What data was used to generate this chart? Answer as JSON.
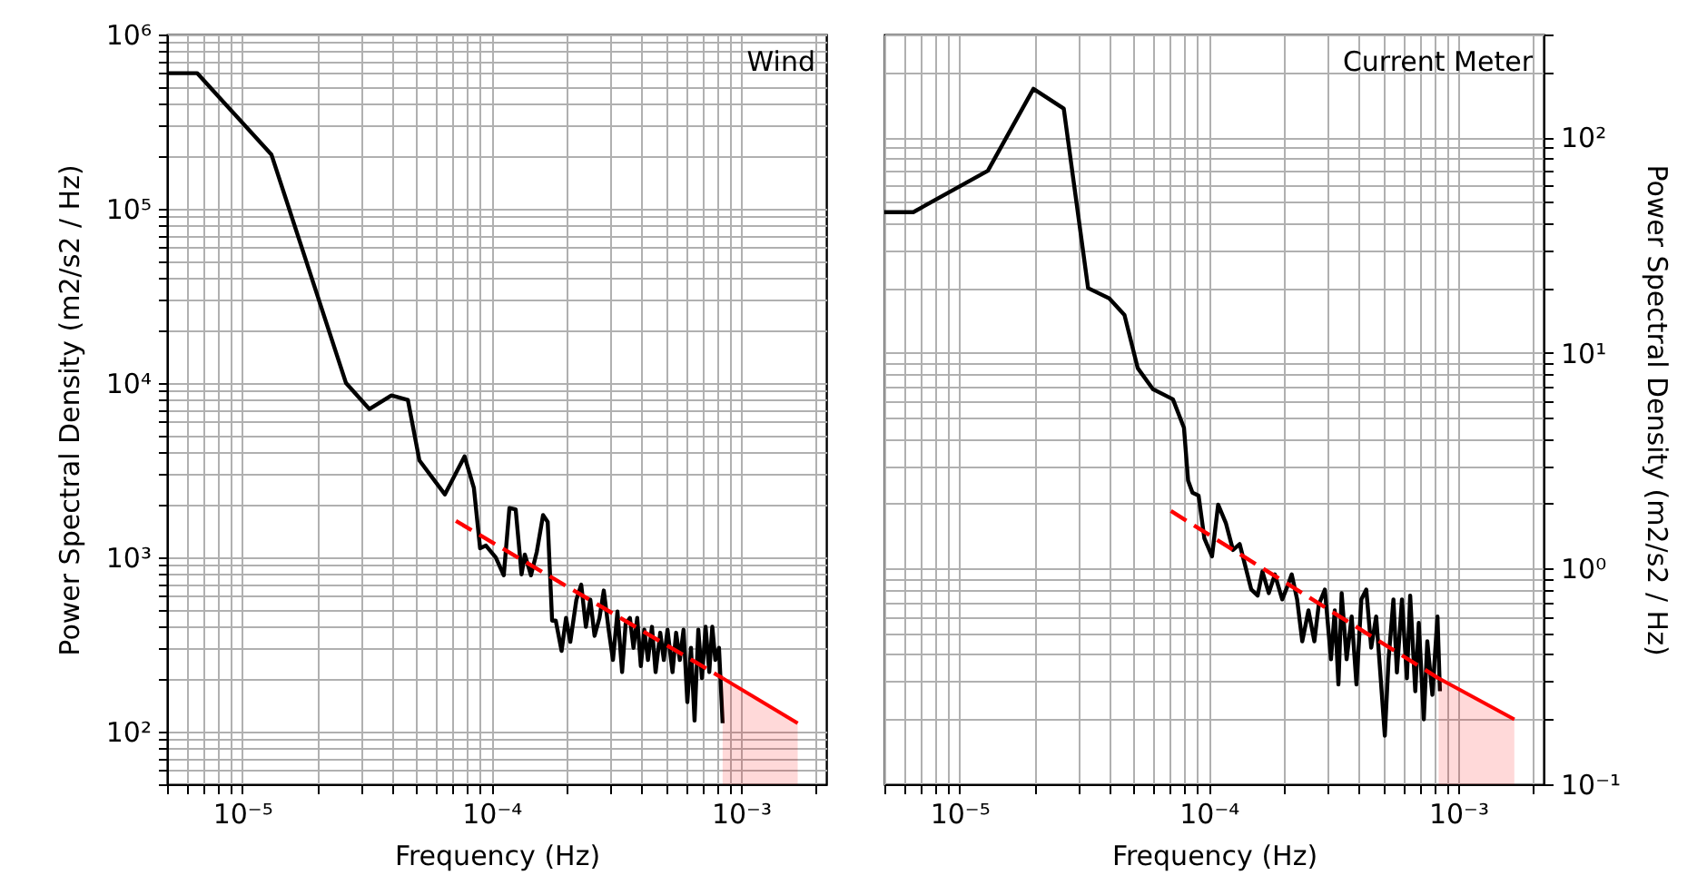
{
  "chart_data": [
    {
      "type": "line",
      "annotations": [
        "Wind"
      ],
      "xlabel": "Frequency (Hz)",
      "ylabel": "Power Spectral Density (m2/s2 / Hz)",
      "log": "xy",
      "grid": true,
      "xlim": [
        5e-06,
        0.0022
      ],
      "ylim": [
        50,
        1000000
      ],
      "xticks": [
        {
          "value": 5e-06,
          "label": null
        },
        {
          "value": 6e-06,
          "label": null
        },
        {
          "value": 7e-06,
          "label": null
        },
        {
          "value": 8e-06,
          "label": null
        },
        {
          "value": 9e-06,
          "label": null
        },
        {
          "value": 1e-05,
          "label": "10⁻⁵"
        },
        {
          "value": 2e-05,
          "label": null
        },
        {
          "value": 3e-05,
          "label": null
        },
        {
          "value": 4e-05,
          "label": null
        },
        {
          "value": 5e-05,
          "label": null
        },
        {
          "value": 6e-05,
          "label": null
        },
        {
          "value": 7e-05,
          "label": null
        },
        {
          "value": 8e-05,
          "label": null
        },
        {
          "value": 9e-05,
          "label": null
        },
        {
          "value": 0.0001,
          "label": "10⁻⁴"
        },
        {
          "value": 0.0002,
          "label": null
        },
        {
          "value": 0.0003,
          "label": null
        },
        {
          "value": 0.0004,
          "label": null
        },
        {
          "value": 0.0005,
          "label": null
        },
        {
          "value": 0.0006,
          "label": null
        },
        {
          "value": 0.0007,
          "label": null
        },
        {
          "value": 0.0008,
          "label": null
        },
        {
          "value": 0.0009,
          "label": null
        },
        {
          "value": 0.001,
          "label": "10⁻³"
        },
        {
          "value": 0.002,
          "label": null
        }
      ],
      "yticks": [
        {
          "value": 50,
          "label": null
        },
        {
          "value": 60,
          "label": null
        },
        {
          "value": 70,
          "label": null
        },
        {
          "value": 80,
          "label": null
        },
        {
          "value": 90,
          "label": null
        },
        {
          "value": 100,
          "label": "10²"
        },
        {
          "value": 200,
          "label": null
        },
        {
          "value": 300,
          "label": null
        },
        {
          "value": 400,
          "label": null
        },
        {
          "value": 500,
          "label": null
        },
        {
          "value": 600,
          "label": null
        },
        {
          "value": 700,
          "label": null
        },
        {
          "value": 800,
          "label": null
        },
        {
          "value": 900,
          "label": null
        },
        {
          "value": 1000,
          "label": "10³"
        },
        {
          "value": 2000,
          "label": null
        },
        {
          "value": 3000,
          "label": null
        },
        {
          "value": 4000,
          "label": null
        },
        {
          "value": 5000,
          "label": null
        },
        {
          "value": 6000,
          "label": null
        },
        {
          "value": 7000,
          "label": null
        },
        {
          "value": 8000,
          "label": null
        },
        {
          "value": 9000,
          "label": null
        },
        {
          "value": 10000,
          "label": "10⁴"
        },
        {
          "value": 20000,
          "label": null
        },
        {
          "value": 30000,
          "label": null
        },
        {
          "value": 40000,
          "label": null
        },
        {
          "value": 50000,
          "label": null
        },
        {
          "value": 60000,
          "label": null
        },
        {
          "value": 70000,
          "label": null
        },
        {
          "value": 80000,
          "label": null
        },
        {
          "value": 90000,
          "label": null
        },
        {
          "value": 100000,
          "label": "10⁵"
        },
        {
          "value": 200000,
          "label": null
        },
        {
          "value": 300000,
          "label": null
        },
        {
          "value": 400000,
          "label": null
        },
        {
          "value": 500000,
          "label": null
        },
        {
          "value": 600000,
          "label": null
        },
        {
          "value": 700000,
          "label": null
        },
        {
          "value": 800000,
          "label": null
        },
        {
          "value": 900000,
          "label": null
        },
        {
          "value": 1000000,
          "label": "10⁶"
        }
      ],
      "series": [
        {
          "type": "line",
          "color": "#000000",
          "x": [
            5e-06,
            6.6e-06,
            1.31e-05,
            2.61e-05,
            3.24e-05,
            3.97e-05,
            4.62e-05,
            5.14e-05,
            6.5e-05,
            7.8e-05,
            8.5e-05,
            9e-05,
            9.5e-05,
            0.000104,
            0.000112,
            0.000118,
            0.000125,
            0.000132,
            0.000136,
            0.000144,
            0.000152,
            0.000161,
            0.000168,
            0.000175,
            0.000181,
            0.000191,
            0.000199,
            0.000207,
            0.000219,
            0.000229,
            0.000239,
            0.000249,
            0.000259,
            0.000271,
            0.000282,
            0.000295,
            0.000307,
            0.00032,
            0.000334,
            0.000345,
            0.000359,
            0.000371,
            0.000384,
            0.000397,
            0.00041,
            0.000424,
            0.00044,
            0.000455,
            0.000475,
            0.000491,
            0.000508,
            0.000532,
            0.00055,
            0.000569,
            0.000589,
            0.00061,
            0.000631,
            0.000652,
            0.000675,
            0.000698,
            0.000722,
            0.000747,
            0.000768,
            0.00079,
            0.000817,
            0.000845
          ],
          "values": [
            600000,
            600000,
            205000,
            10000,
            7100,
            8500,
            8000,
            3600,
            2300,
            3800,
            2500,
            1130,
            1170,
            1000,
            790,
            1920,
            1890,
            800,
            1040,
            790,
            1080,
            1750,
            1600,
            434,
            434,
            291,
            450,
            328,
            573,
            698,
            400,
            573,
            355,
            450,
            646,
            385,
            258,
            489,
            220,
            416,
            450,
            303,
            450,
            238,
            385,
            258,
            400,
            220,
            370,
            258,
            385,
            220,
            370,
            258,
            385,
            148,
            303,
            116,
            385,
            203,
            400,
            220,
            400,
            258,
            303,
            112
          ]
        },
        {
          "type": "line",
          "color": "#ff0000",
          "line_style": "dashed",
          "x": [
            7.2e-05,
            0.000845
          ],
          "values": [
            1620,
            203
          ]
        },
        {
          "type": "area",
          "color": "#ff0000",
          "x": [
            0.000845,
            0.00169
          ],
          "values": [
            203,
            112
          ]
        }
      ]
    },
    {
      "type": "line",
      "annotations": [
        "Current Meter"
      ],
      "xlabel": "Frequency (Hz)",
      "ylabel": "Power Spectral Density (m2/s2 / Hz)",
      "log": "xy",
      "grid": true,
      "xlim": [
        5e-06,
        0.0022
      ],
      "ylim": [
        0.1,
        300
      ],
      "xticks": [
        {
          "value": 5e-06,
          "label": null
        },
        {
          "value": 6e-06,
          "label": null
        },
        {
          "value": 7e-06,
          "label": null
        },
        {
          "value": 8e-06,
          "label": null
        },
        {
          "value": 9e-06,
          "label": null
        },
        {
          "value": 1e-05,
          "label": "10⁻⁵"
        },
        {
          "value": 2e-05,
          "label": null
        },
        {
          "value": 3e-05,
          "label": null
        },
        {
          "value": 4e-05,
          "label": null
        },
        {
          "value": 5e-05,
          "label": null
        },
        {
          "value": 6e-05,
          "label": null
        },
        {
          "value": 7e-05,
          "label": null
        },
        {
          "value": 8e-05,
          "label": null
        },
        {
          "value": 9e-05,
          "label": null
        },
        {
          "value": 0.0001,
          "label": "10⁻⁴"
        },
        {
          "value": 0.0002,
          "label": null
        },
        {
          "value": 0.0003,
          "label": null
        },
        {
          "value": 0.0004,
          "label": null
        },
        {
          "value": 0.0005,
          "label": null
        },
        {
          "value": 0.0006,
          "label": null
        },
        {
          "value": 0.0007,
          "label": null
        },
        {
          "value": 0.0008,
          "label": null
        },
        {
          "value": 0.0009,
          "label": null
        },
        {
          "value": 0.001,
          "label": "10⁻³"
        },
        {
          "value": 0.002,
          "label": null
        }
      ],
      "yticks": [
        {
          "value": 0.1,
          "label": "10⁻¹"
        },
        {
          "value": 0.2,
          "label": null
        },
        {
          "value": 0.3,
          "label": null
        },
        {
          "value": 0.4,
          "label": null
        },
        {
          "value": 0.5,
          "label": null
        },
        {
          "value": 0.6,
          "label": null
        },
        {
          "value": 0.7,
          "label": null
        },
        {
          "value": 0.8,
          "label": null
        },
        {
          "value": 0.9,
          "label": null
        },
        {
          "value": 1,
          "label": "10⁰"
        },
        {
          "value": 2,
          "label": null
        },
        {
          "value": 3,
          "label": null
        },
        {
          "value": 4,
          "label": null
        },
        {
          "value": 5,
          "label": null
        },
        {
          "value": 6,
          "label": null
        },
        {
          "value": 7,
          "label": null
        },
        {
          "value": 8,
          "label": null
        },
        {
          "value": 9,
          "label": null
        },
        {
          "value": 10,
          "label": "10¹"
        },
        {
          "value": 20,
          "label": null
        },
        {
          "value": 30,
          "label": null
        },
        {
          "value": 40,
          "label": null
        },
        {
          "value": 50,
          "label": null
        },
        {
          "value": 60,
          "label": null
        },
        {
          "value": 70,
          "label": null
        },
        {
          "value": 80,
          "label": null
        },
        {
          "value": 90,
          "label": null
        },
        {
          "value": 100,
          "label": "10²"
        },
        {
          "value": 200,
          "label": null
        },
        {
          "value": 300,
          "label": null
        }
      ],
      "series": [
        {
          "type": "line",
          "color": "#000000",
          "x": [
            5e-06,
            6.53e-06,
            1.3e-05,
            1.98e-05,
            2.62e-05,
            3.28e-05,
            3.99e-05,
            4.59e-05,
            5.19e-05,
            5.97e-05,
            7.18e-05,
            7.95e-05,
            8.26e-05,
            8.6e-05,
            9.1e-05,
            9.6e-05,
            0.000103,
            0.000109,
            0.000117,
            0.000125,
            0.000133,
            0.00014,
            0.000148,
            0.000157,
            0.000164,
            0.000174,
            0.000184,
            0.000197,
            0.000206,
            0.000215,
            0.000226,
            0.000237,
            0.000251,
            0.000265,
            0.000276,
            0.000292,
            0.000309,
            0.00032,
            0.000331,
            0.000341,
            0.000357,
            0.000374,
            0.000391,
            0.000409,
            0.000428,
            0.000448,
            0.000469,
            0.000491,
            0.000508,
            0.000526,
            0.00055,
            0.000568,
            0.000595,
            0.000623,
            0.000642,
            0.000673,
            0.000695,
            0.000728,
            0.000752,
            0.000788,
            0.000826,
            0.000845
          ],
          "values": [
            45,
            45,
            70,
            168,
            136,
            20,
            17.9,
            15,
            8.5,
            6.8,
            6.1,
            4.5,
            2.56,
            2.25,
            2.18,
            1.38,
            1.14,
            1.98,
            1.63,
            1.22,
            1.3,
            1.03,
            0.8,
            0.75,
            0.97,
            0.77,
            0.94,
            0.72,
            0.82,
            0.94,
            0.72,
            0.46,
            0.64,
            0.46,
            0.68,
            0.8,
            0.38,
            0.64,
            0.29,
            0.77,
            0.38,
            0.6,
            0.29,
            0.72,
            0.8,
            0.43,
            0.6,
            0.29,
            0.168,
            0.38,
            0.72,
            0.33,
            0.72,
            0.31,
            0.75,
            0.27,
            0.56,
            0.2,
            0.46,
            0.26,
            0.6,
            0.27
          ]
        },
        {
          "type": "line",
          "color": "#ff0000",
          "line_style": "dashed",
          "x": [
            7.05e-05,
            0.000835
          ],
          "values": [
            1.85,
            0.31
          ]
        },
        {
          "type": "area",
          "color": "#ff0000",
          "x": [
            0.000835,
            0.00168
          ],
          "values": [
            0.31,
            0.2
          ]
        }
      ]
    }
  ]
}
